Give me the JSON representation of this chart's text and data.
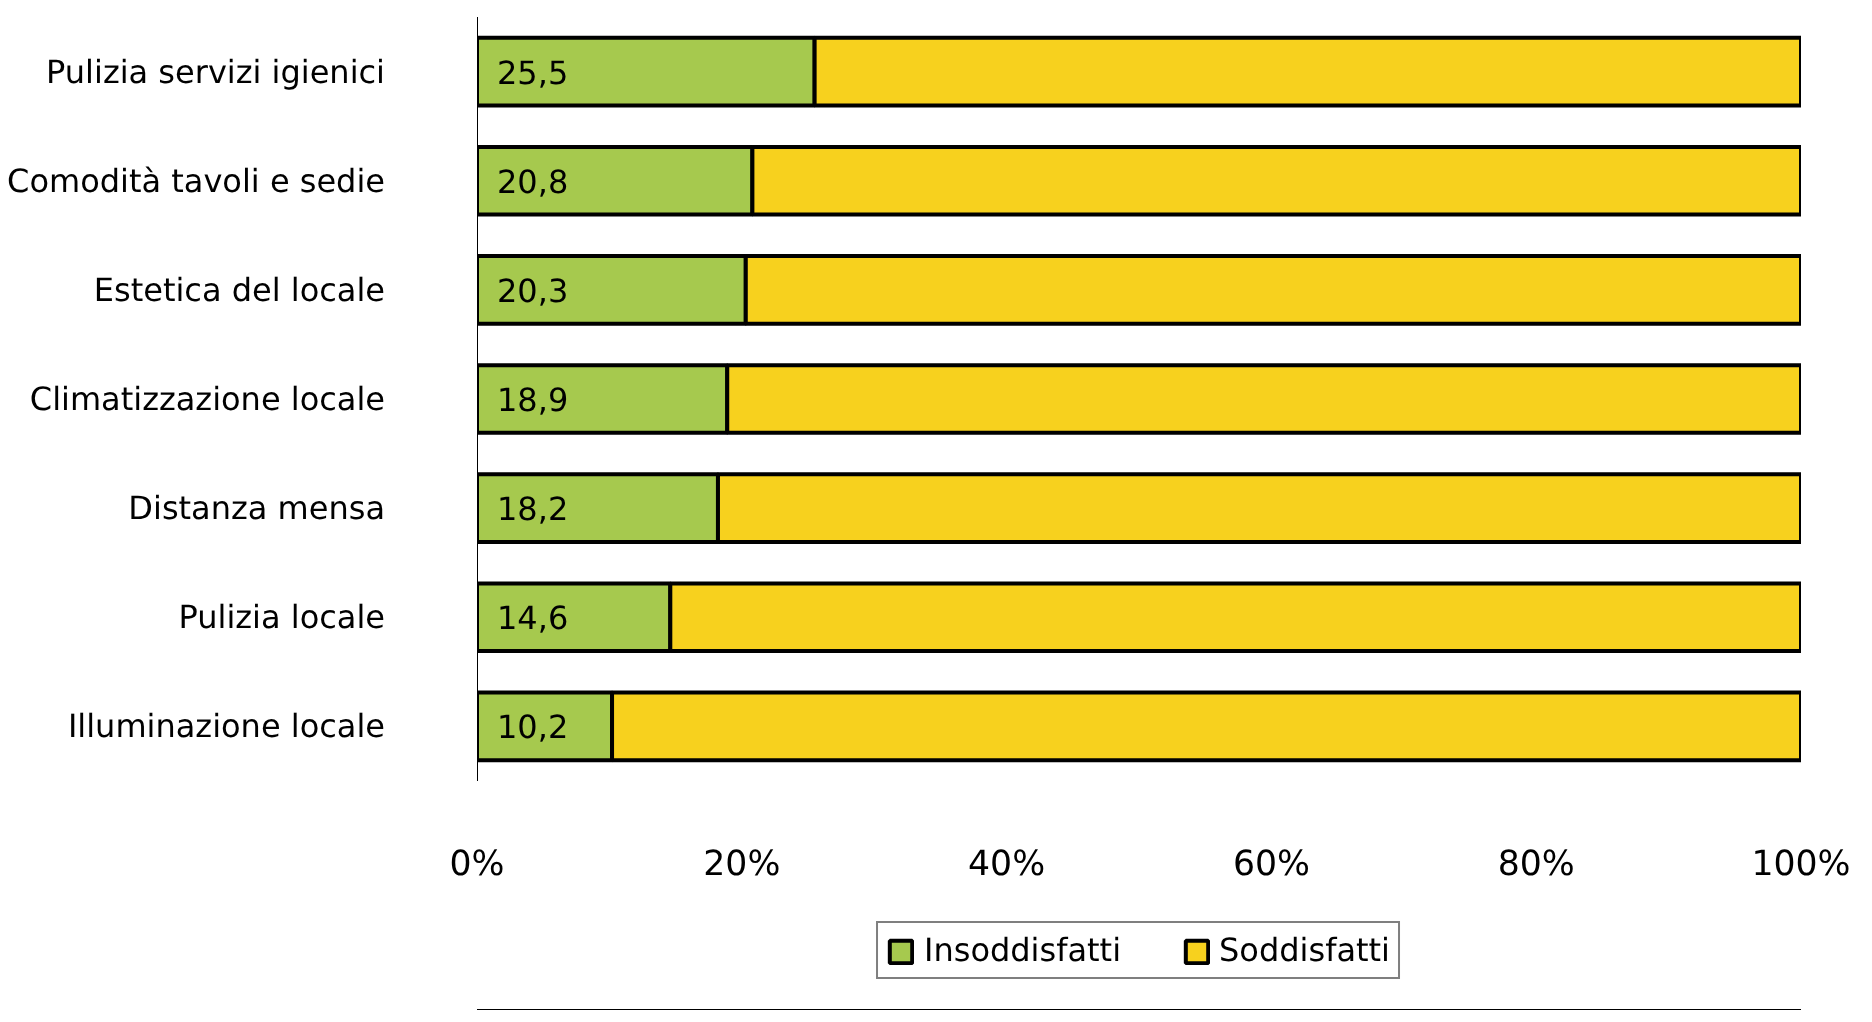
{
  "chart_data": {
    "type": "bar",
    "orientation": "horizontal",
    "stacked": true,
    "categories": [
      "Pulizia servizi igienici",
      "Comodità tavoli e sedie",
      "Estetica del locale",
      "Climatizzazione locale",
      "Distanza mensa",
      "Pulizia locale",
      "Illuminazione locale"
    ],
    "series": [
      {
        "name": "Insoddisfatti",
        "color": "#a6c94e",
        "values": [
          25.5,
          20.8,
          20.3,
          18.9,
          18.2,
          14.6,
          10.2
        ],
        "value_labels": [
          "25,5",
          "20,8",
          "20,3",
          "18,9",
          "18,2",
          "14,6",
          "10,2"
        ]
      },
      {
        "name": "Soddisfatti",
        "color": "#f7d11e",
        "values": [
          74.5,
          79.2,
          79.7,
          81.1,
          81.8,
          85.4,
          89.8
        ]
      }
    ],
    "xlim": [
      0,
      100
    ],
    "xticks": [
      {
        "value": 0,
        "label": "0%"
      },
      {
        "value": 20,
        "label": "20%"
      },
      {
        "value": 40,
        "label": "40%"
      },
      {
        "value": 60,
        "label": "60%"
      },
      {
        "value": 80,
        "label": "80%"
      },
      {
        "value": 100,
        "label": "100%"
      }
    ],
    "grid": false,
    "legend": "bottom"
  }
}
